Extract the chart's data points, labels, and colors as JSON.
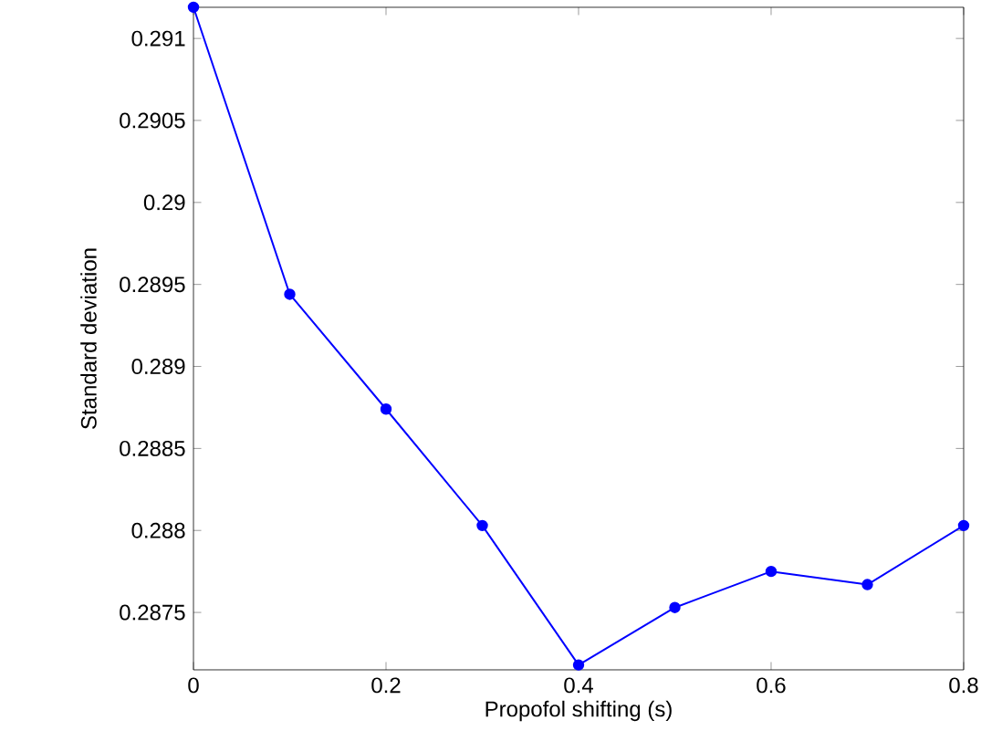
{
  "chart_data": {
    "type": "line",
    "xlabel": "Propofol shifting (s)",
    "ylabel": "Standard deviation",
    "x": [
      0,
      0.1,
      0.2,
      0.3,
      0.4,
      0.5,
      0.6,
      0.7,
      0.8
    ],
    "series": [
      {
        "color": "#0000ff",
        "values": [
          0.29119,
          0.28944,
          0.28874,
          0.28803,
          0.28718,
          0.28753,
          0.28775,
          0.28767,
          0.28803
        ]
      }
    ],
    "xlim": [
      0,
      0.8
    ],
    "ylim": [
      0.28715,
      0.29119
    ],
    "xticks": [
      0,
      0.2,
      0.4,
      0.6,
      0.8
    ],
    "yticks": [
      0.2875,
      0.288,
      0.2885,
      0.289,
      0.2895,
      0.29,
      0.2905,
      0.291
    ],
    "marker": "circle",
    "line_style": "solid",
    "grid": false
  }
}
